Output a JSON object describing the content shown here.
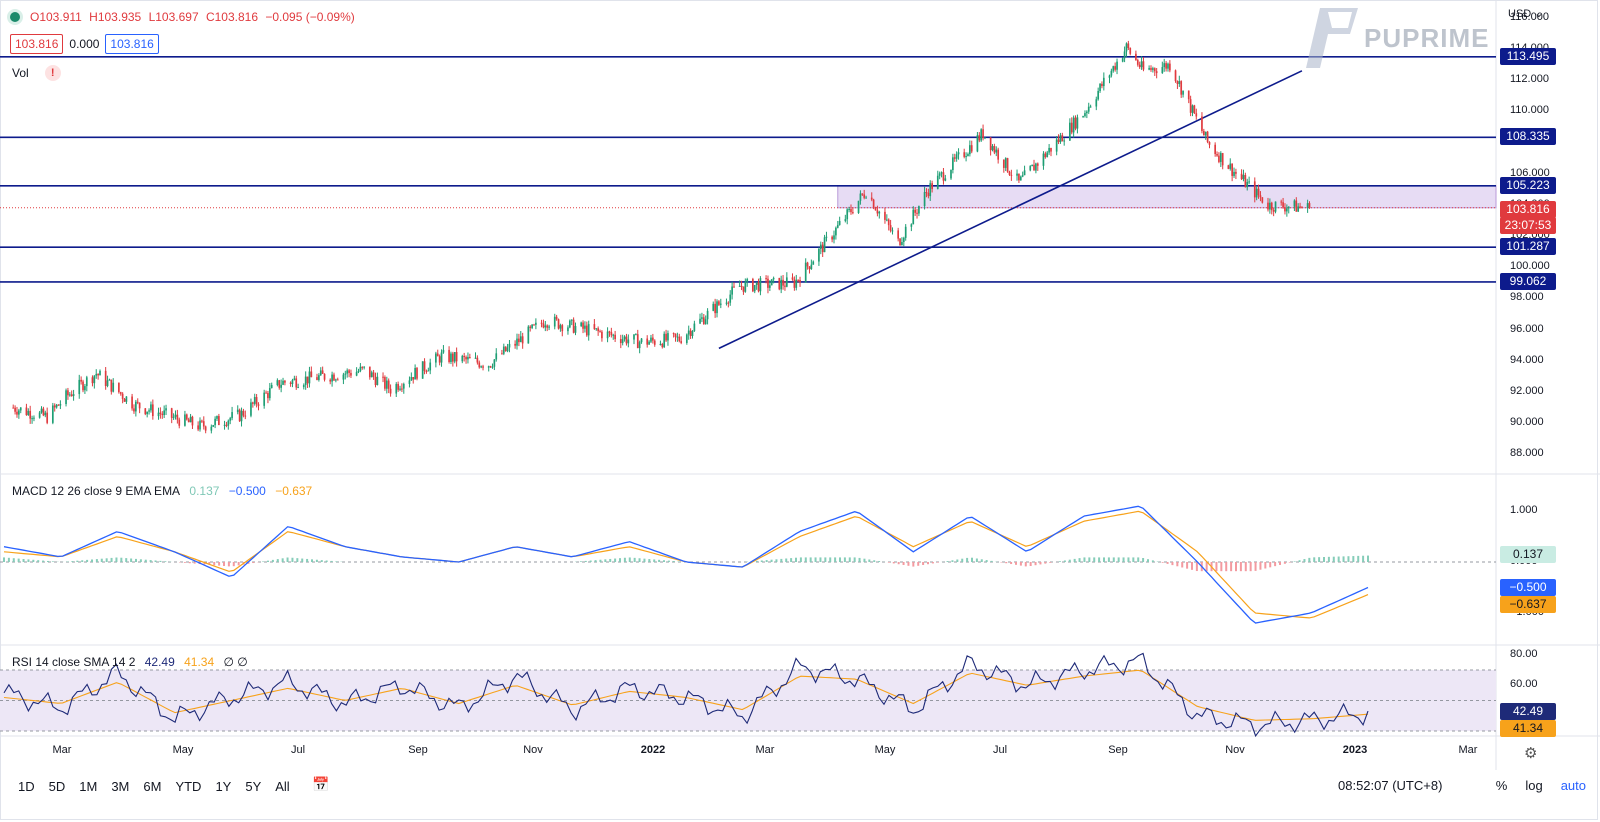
{
  "ohlc": {
    "o": "O103.911",
    "h": "H103.935",
    "l": "L103.697",
    "c": "C103.816",
    "chg": "−0.095 (−0.09%)"
  },
  "boxes": {
    "bid": "103.816",
    "spread": "0.000",
    "ask": "103.816"
  },
  "vol_label": "Vol",
  "vol_warn": "!",
  "brand": "PUPRIME",
  "currency": "USD ⌄",
  "price_axis": [
    "116.000",
    "114.000",
    "112.000",
    "110.000",
    "108.000",
    "106.000",
    "104.000",
    "102.000",
    "100.000",
    "98.000",
    "96.000",
    "94.000",
    "92.000",
    "90.000",
    "88.000"
  ],
  "hlines": [
    {
      "label": "113.495",
      "value": 113.495
    },
    {
      "label": "108.335",
      "value": 108.335
    },
    {
      "label": "105.223",
      "value": 105.223
    },
    {
      "label": "101.287",
      "value": 101.287
    },
    {
      "label": "99.062",
      "value": 99.062
    }
  ],
  "zone": {
    "from": 103.816,
    "to": 105.223
  },
  "last_price": {
    "label": "103.816",
    "countdown": "23:07:53"
  },
  "macd": {
    "legend_title": "MACD 12 26 close 9 EMA EMA",
    "v_hist": "0.137",
    "v_macd": "−0.500",
    "v_signal": "−0.637",
    "axis": [
      "1.000",
      "0.000",
      "−1.000"
    ]
  },
  "rsi": {
    "legend_title": "RSI 14 close SMA 14 2",
    "v_rsi": "42.49",
    "v_sma": "41.34",
    "extra": "∅ ∅",
    "axis": [
      "80.00",
      "60.00",
      "40.00"
    ]
  },
  "x_axis": [
    {
      "label": "Mar",
      "bold": false
    },
    {
      "label": "May",
      "bold": false
    },
    {
      "label": "Jul",
      "bold": false
    },
    {
      "label": "Sep",
      "bold": false
    },
    {
      "label": "Nov",
      "bold": false
    },
    {
      "label": "2022",
      "bold": true
    },
    {
      "label": "Mar",
      "bold": false
    },
    {
      "label": "May",
      "bold": false
    },
    {
      "label": "Jul",
      "bold": false
    },
    {
      "label": "Sep",
      "bold": false
    },
    {
      "label": "Nov",
      "bold": false
    },
    {
      "label": "2023",
      "bold": true
    },
    {
      "label": "Mar",
      "bold": false
    }
  ],
  "timeframes": [
    "1D",
    "5D",
    "1M",
    "3M",
    "6M",
    "YTD",
    "1Y",
    "5Y",
    "All"
  ],
  "clock": "08:52:07 (UTC+8)",
  "tools": {
    "percent": "%",
    "log": "log",
    "auto": "auto"
  },
  "colors": {
    "up": "#1e9e74",
    "down": "#e03a3e",
    "navy": "#0d1b8c",
    "zone": "#e3d6f2",
    "macd": "#2962ff",
    "signal": "#f7a21b",
    "rsi": "#1e2a78"
  },
  "chart_data": {
    "type": "candlestick",
    "title": "",
    "ylim": [
      87,
      116.5
    ],
    "close_path": [
      {
        "x": "2021-02-15",
        "y": 91.0
      },
      {
        "x": "2021-03-05",
        "y": 90.4
      },
      {
        "x": "2021-03-15",
        "y": 91.7
      },
      {
        "x": "2021-03-31",
        "y": 93.2
      },
      {
        "x": "2021-04-20",
        "y": 91.2
      },
      {
        "x": "2021-05-25",
        "y": 89.8
      },
      {
        "x": "2021-06-15",
        "y": 90.5
      },
      {
        "x": "2021-07-07",
        "y": 92.6
      },
      {
        "x": "2021-08-20",
        "y": 93.4
      },
      {
        "x": "2021-09-03",
        "y": 92.2
      },
      {
        "x": "2021-09-30",
        "y": 94.3
      },
      {
        "x": "2021-10-25",
        "y": 93.8
      },
      {
        "x": "2021-11-24",
        "y": 96.6
      },
      {
        "x": "2022-01-14",
        "y": 95.2
      },
      {
        "x": "2022-02-03",
        "y": 95.4
      },
      {
        "x": "2022-03-07",
        "y": 98.8
      },
      {
        "x": "2022-04-05",
        "y": 99.0
      },
      {
        "x": "2022-05-13",
        "y": 104.9
      },
      {
        "x": "2022-05-30",
        "y": 101.6
      },
      {
        "x": "2022-06-15",
        "y": 105.0
      },
      {
        "x": "2022-07-14",
        "y": 108.6
      },
      {
        "x": "2022-08-02",
        "y": 105.4
      },
      {
        "x": "2022-09-06",
        "y": 110.0
      },
      {
        "x": "2022-09-28",
        "y": 114.1
      },
      {
        "x": "2022-10-07",
        "y": 112.6
      },
      {
        "x": "2022-10-21",
        "y": 113.0
      },
      {
        "x": "2022-11-10",
        "y": 108.0
      },
      {
        "x": "2022-11-25",
        "y": 106.0
      },
      {
        "x": "2022-12-12",
        "y": 104.0
      },
      {
        "x": "2023-01-03",
        "y": 103.816
      }
    ],
    "trendline": [
      {
        "x": "2022-02-24",
        "y": 94.8
      },
      {
        "x": "2022-12-30",
        "y": 112.6
      }
    ],
    "macd_path": [
      0.3,
      0.1,
      0.6,
      0.2,
      -0.3,
      0.7,
      0.3,
      0.1,
      0.0,
      0.3,
      0.1,
      0.4,
      0.0,
      -0.1,
      0.6,
      1.0,
      0.2,
      0.9,
      0.2,
      0.9,
      1.1,
      0.0,
      -1.2,
      -1.0,
      -0.5
    ],
    "signal_path": [
      0.2,
      0.1,
      0.5,
      0.2,
      -0.2,
      0.6,
      0.3,
      0.1,
      0.0,
      0.3,
      0.1,
      0.3,
      0.0,
      -0.1,
      0.5,
      0.9,
      0.3,
      0.8,
      0.3,
      0.8,
      1.0,
      0.2,
      -1.0,
      -1.1,
      -0.64
    ],
    "rsi_path": [
      55,
      45,
      68,
      38,
      52,
      62,
      48,
      60,
      45,
      66,
      44,
      58,
      52,
      40,
      72,
      64,
      44,
      74,
      60,
      70,
      76,
      40,
      34,
      37,
      42
    ],
    "rsi_sma_path": [
      52,
      48,
      62,
      42,
      50,
      58,
      50,
      58,
      48,
      60,
      47,
      56,
      52,
      44,
      66,
      64,
      48,
      68,
      60,
      66,
      70,
      46,
      37,
      38,
      41
    ]
  }
}
